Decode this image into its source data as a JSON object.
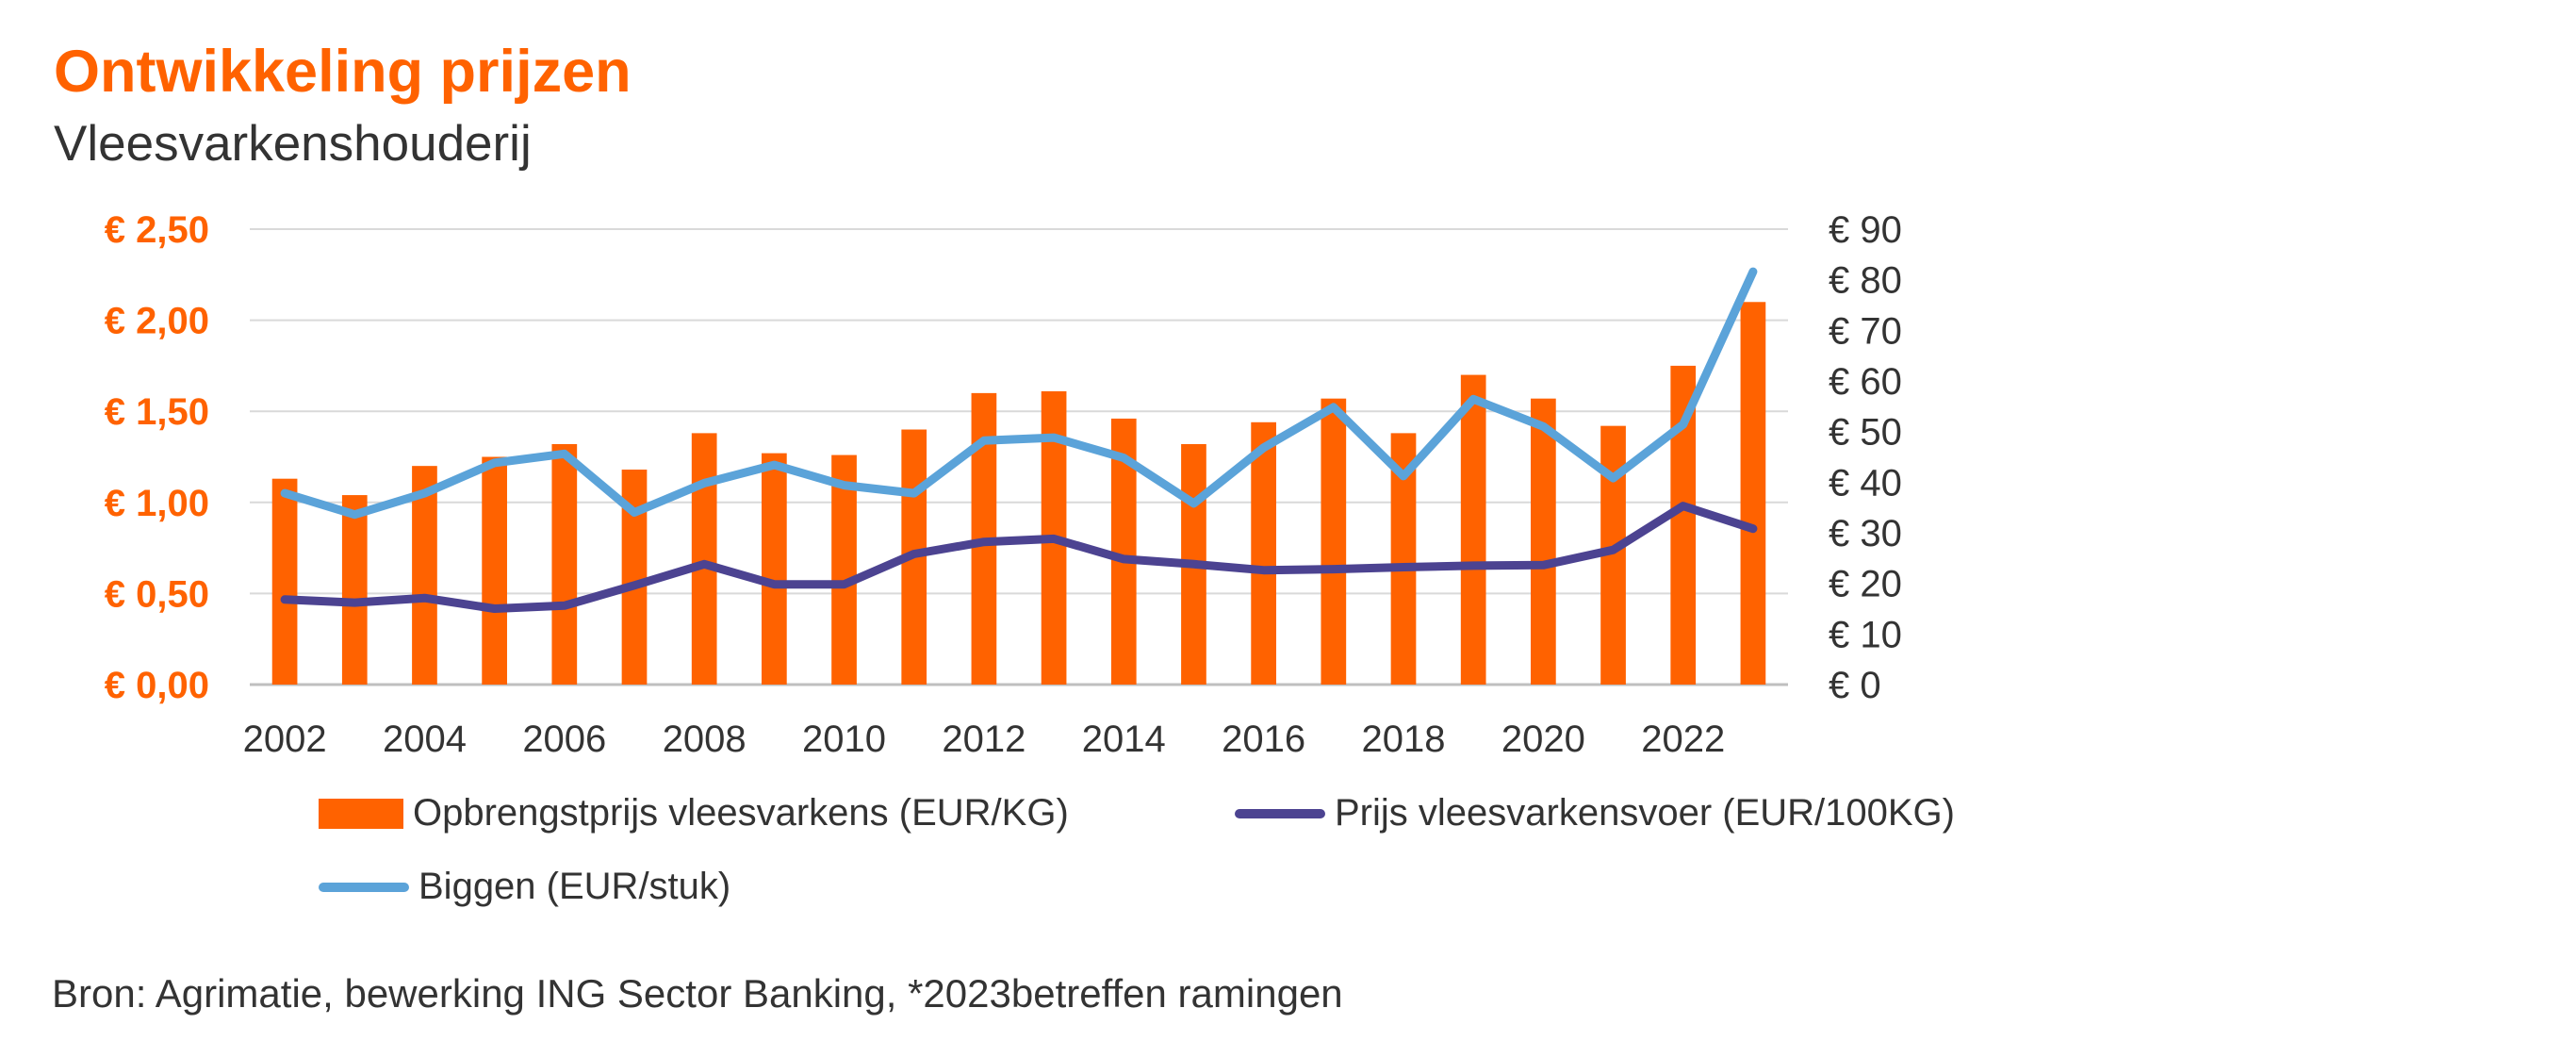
{
  "chart_data": {
    "type": "bar",
    "title": "Ontwikkeling prijzen",
    "subtitle": "Vleesvarkenshouderij",
    "categories": [
      "2002",
      "2003",
      "2004",
      "2005",
      "2006",
      "2007",
      "2008",
      "2009",
      "2010",
      "2011",
      "2012",
      "2013",
      "2014",
      "2015",
      "2016",
      "2017",
      "2018",
      "2019",
      "2020",
      "2021",
      "2022",
      "2023"
    ],
    "x_tick_labels": [
      "2002",
      "2004",
      "2006",
      "2008",
      "2010",
      "2012",
      "2014",
      "2016",
      "2018",
      "2020",
      "2022"
    ],
    "y_left": {
      "range": [
        0,
        2.5
      ],
      "ticks": [
        0,
        0.5,
        1.0,
        1.5,
        2.0,
        2.5
      ],
      "tick_labels": [
        "€ 0,00",
        "€ 0,50",
        "€ 1,00",
        "€ 1,50",
        "€ 2,00",
        "€ 2,50"
      ],
      "color": "#ff6200"
    },
    "y_right": {
      "range": [
        0,
        90
      ],
      "ticks": [
        0,
        10,
        20,
        30,
        40,
        50,
        60,
        70,
        80,
        90
      ],
      "tick_labels": [
        "€ 0",
        "€ 10",
        "€ 20",
        "€ 30",
        "€ 40",
        "€ 50",
        "€ 60",
        "€ 70",
        "€ 80",
        "€ 90"
      ]
    },
    "grid": true,
    "legend_position": "bottom",
    "series": [
      {
        "name": "Opbrengstprijs vleesvarkens (EUR/KG)",
        "type": "bar",
        "axis": "left",
        "color": "#ff6200",
        "values": [
          1.13,
          1.04,
          1.2,
          1.25,
          1.32,
          1.18,
          1.38,
          1.27,
          1.26,
          1.4,
          1.6,
          1.61,
          1.46,
          1.32,
          1.44,
          1.57,
          1.38,
          1.7,
          1.57,
          1.42,
          1.75,
          2.1
        ]
      },
      {
        "name": "Prijs vleesvarkensvoer (EUR/100KG)",
        "type": "line",
        "axis": "right",
        "color": "#4c4391",
        "values": [
          16.8,
          16.2,
          17.1,
          15.0,
          15.6,
          19.6,
          23.8,
          19.8,
          19.8,
          25.8,
          28.2,
          28.8,
          24.8,
          23.8,
          22.6,
          22.8,
          23.2,
          23.5,
          23.6,
          26.6,
          35.3,
          30.8
        ]
      },
      {
        "name": "Biggen (EUR/stuk)",
        "type": "line",
        "axis": "right",
        "color": "#5ba3d9",
        "values": [
          37.8,
          33.6,
          37.8,
          43.8,
          45.6,
          34.0,
          39.8,
          43.4,
          39.4,
          37.8,
          48.2,
          48.8,
          44.8,
          35.8,
          46.8,
          54.8,
          41.2,
          56.4,
          51.0,
          40.8,
          51.4,
          81.6
        ]
      }
    ]
  },
  "source_note": "Bron: Agrimatie, bewerking ING Sector Banking, *2023betreffen ramingen"
}
